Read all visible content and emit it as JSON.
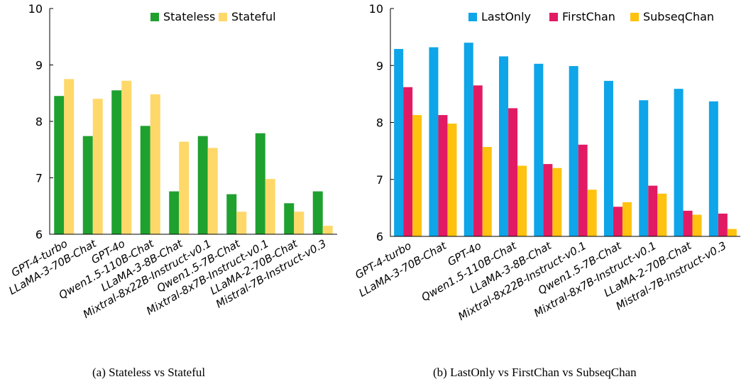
{
  "captions": {
    "left": "(a)  Stateless vs Stateful",
    "right": "(b)  LastOnly vs FirstChan vs SubseqChan"
  },
  "chart_data": [
    {
      "type": "bar",
      "title": "",
      "xlabel": "",
      "ylabel": "",
      "ylim": [
        6,
        10
      ],
      "yticks": [
        6,
        7,
        8,
        9,
        10
      ],
      "grid": false,
      "legend_position": "top-right",
      "categories": [
        "GPT-4-turbo",
        "LLaMA-3-70B-Chat",
        "GPT-4o",
        "Qwen1.5-110B-Chat",
        "LLaMA-3-8B-Chat",
        "Mixtral-8x22B-Instruct-v0.1",
        "Qwen1.5-7B-Chat",
        "Mixtral-8x7B-Instruct-v0.1",
        "LLaMA-2-70B-Chat",
        "Mistral-7B-Instruct-v0.3"
      ],
      "series": [
        {
          "name": "Stateless",
          "color": "#1fa12f",
          "values": [
            8.45,
            7.74,
            8.55,
            7.92,
            6.76,
            7.74,
            6.71,
            7.79,
            6.55,
            6.76
          ]
        },
        {
          "name": "Stateful",
          "color": "#ffd86a",
          "values": [
            8.75,
            8.4,
            8.72,
            8.48,
            7.64,
            7.53,
            6.4,
            6.98,
            6.4,
            6.15
          ]
        }
      ]
    },
    {
      "type": "bar",
      "title": "",
      "xlabel": "",
      "ylabel": "",
      "ylim": [
        6,
        10
      ],
      "yticks": [
        6,
        7,
        8,
        9,
        10
      ],
      "grid": false,
      "legend_position": "top",
      "categories": [
        "GPT-4-turbo",
        "LLaMA-3-70B-Chat",
        "GPT-4o",
        "Qwen1.5-110B-Chat",
        "LLaMA-3-8B-Chat",
        "Mixtral-8x22B-Instruct-v0.1",
        "Qwen1.5-7B-Chat",
        "Mixtral-8x7B-Instruct-v0.1",
        "LLaMA-2-70B-Chat",
        "Mistral-7B-Instruct-v0.3"
      ],
      "series": [
        {
          "name": "LastOnly",
          "color": "#0ea5e9",
          "values": [
            9.29,
            9.32,
            9.4,
            9.16,
            9.03,
            8.99,
            8.73,
            8.39,
            8.59,
            8.37
          ]
        },
        {
          "name": "FirstChan",
          "color": "#e21a63",
          "values": [
            8.62,
            8.13,
            8.65,
            8.25,
            7.27,
            7.61,
            6.52,
            6.89,
            6.45,
            6.4
          ]
        },
        {
          "name": "SubseqChan",
          "color": "#ffc20e",
          "values": [
            8.13,
            7.98,
            7.57,
            7.24,
            7.2,
            6.82,
            6.6,
            6.75,
            6.38,
            6.13
          ]
        }
      ]
    }
  ]
}
